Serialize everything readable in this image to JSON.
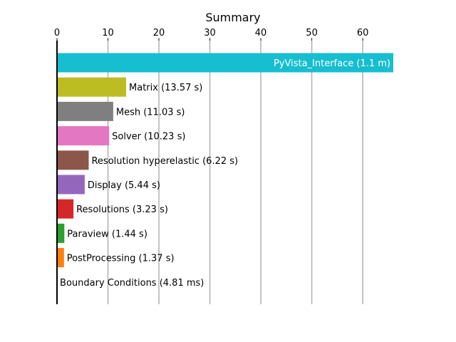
{
  "chart_data": {
    "type": "bar",
    "orientation": "horizontal",
    "title": "Summary",
    "xlabel": "",
    "ylabel": "",
    "xlim": [
      0,
      66
    ],
    "x_ticks": [
      0,
      10,
      20,
      30,
      40,
      50,
      60
    ],
    "x_tick_labels": [
      "0",
      "10",
      "20",
      "30",
      "40",
      "50",
      "60"
    ],
    "x_axis_position": "top",
    "grid": "x-major",
    "legend": "none",
    "categories": [
      "PyVista_Interface",
      "Matrix",
      "Mesh",
      "Solver",
      "Resolution hyperelastic",
      "Display",
      "Resolutions",
      "Paraview",
      "PostProcessing",
      "Boundary Conditions"
    ],
    "values": [
      66,
      13.57,
      11.03,
      10.23,
      6.22,
      5.44,
      3.23,
      1.44,
      1.37,
      0.00481
    ],
    "labels": [
      "PyVista_Interface (1.1 m)",
      "Matrix (13.57 s)",
      "Mesh (11.03 s)",
      "Solver (10.23 s)",
      "Resolution hyperelastic (6.22 s)",
      "Display (5.44 s)",
      "Resolutions (3.23 s)",
      "Paraview (1.44 s)",
      "PostProcessing (1.37 s)",
      "Boundary Conditions (4.81 ms)"
    ],
    "colors": [
      "#17becf",
      "#bcbd22",
      "#7f7f7f",
      "#e377c2",
      "#8c564b",
      "#9467bd",
      "#d62728",
      "#2ca02c",
      "#ff7f0e",
      "#1f77b4"
    ],
    "label_inside": [
      true,
      false,
      false,
      false,
      false,
      false,
      false,
      false,
      false,
      false
    ]
  }
}
